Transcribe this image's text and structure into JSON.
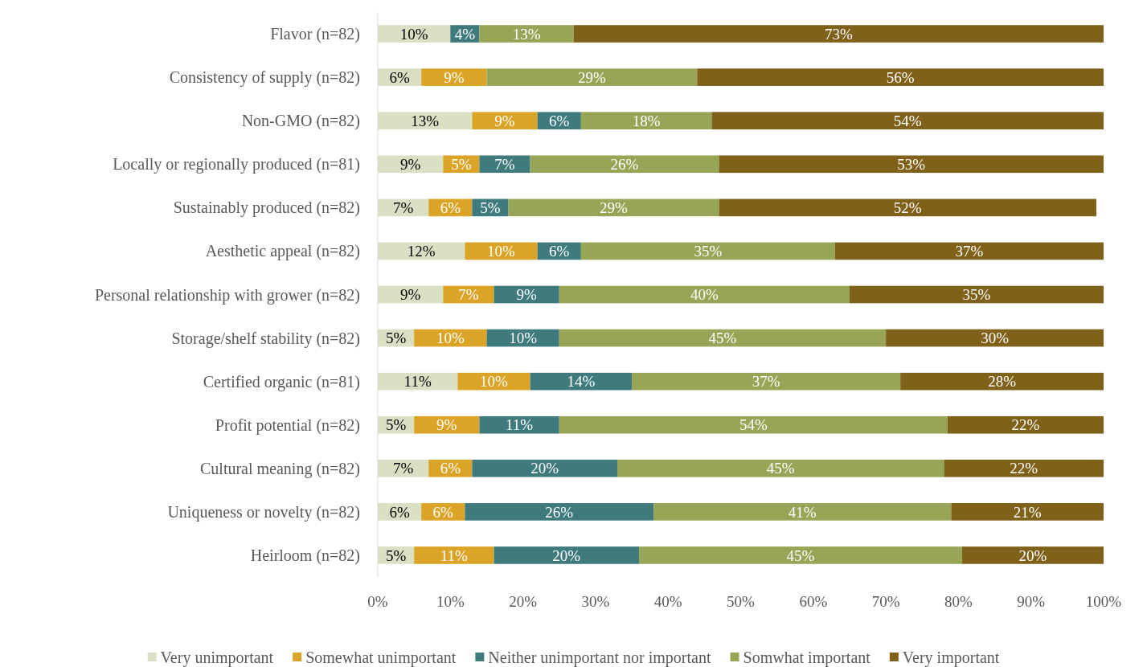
{
  "chart_data": {
    "type": "bar",
    "orientation": "horizontal",
    "stacked": true,
    "legend": "bottom",
    "grid": false,
    "categories": [
      "Flavor (n=82)",
      "Consistency of supply (n=82)",
      "Non-GMO (n=82)",
      "Locally or regionally produced (n=81)",
      "Sustainably produced (n=82)",
      "Aesthetic appeal (n=82)",
      "Personal relationship with grower (n=82)",
      "Storage/shelf stability (n=82)",
      "Certified organic (n=81)",
      "Profit potential (n=82)",
      "Cultural meaning (n=82)",
      "Uniqueness or novelty (n=82)",
      "Heirloom (n=82)"
    ],
    "xlim": [
      0,
      100
    ],
    "xticks": [
      {
        "value": 0,
        "label": "0%"
      },
      {
        "value": 10,
        "label": "10%"
      },
      {
        "value": 20,
        "label": "20%"
      },
      {
        "value": 30,
        "label": "30%"
      },
      {
        "value": 40,
        "label": "40%"
      },
      {
        "value": 50,
        "label": "50%"
      },
      {
        "value": 60,
        "label": "60%"
      },
      {
        "value": 70,
        "label": "70%"
      },
      {
        "value": 80,
        "label": "80%"
      },
      {
        "value": 90,
        "label": "90%"
      },
      {
        "value": 100,
        "label": "100%"
      }
    ],
    "series": [
      {
        "name": "Very unimportant",
        "color": "#d9e0c4",
        "values": [
          10,
          6,
          13,
          9,
          7,
          12,
          9,
          5,
          11,
          5,
          7,
          6,
          5
        ],
        "value_labels": [
          "10%",
          "6%",
          "13%",
          "9%",
          "7%",
          "12%",
          "9%",
          "5%",
          "11%",
          "5%",
          "7%",
          "6%",
          "5%"
        ]
      },
      {
        "name": "Somewhat unimportant",
        "color": "#dba426",
        "values": [
          null,
          9,
          9,
          5,
          6,
          10,
          7,
          10,
          10,
          9,
          6,
          6,
          11
        ],
        "value_labels": [
          null,
          "9%",
          "9%",
          "5%",
          "6%",
          "10%",
          "7%",
          "10%",
          "10%",
          "9%",
          "6%",
          "6%",
          "11%"
        ]
      },
      {
        "name": "Neither unimportant nor important",
        "color": "#3f7a7c",
        "values": [
          4,
          null,
          6,
          7,
          5,
          6,
          9,
          10,
          14,
          11,
          20,
          26,
          20
        ],
        "value_labels": [
          "4%",
          null,
          "6%",
          "7%",
          "5%",
          "6%",
          "9%",
          "10%",
          "14%",
          "11%",
          "20%",
          "26%",
          "20%"
        ]
      },
      {
        "name": "Somwhat important",
        "color": "#97a656",
        "values": [
          13,
          29,
          18,
          26,
          29,
          35,
          40,
          45,
          37,
          53.5,
          45,
          41,
          44.5
        ],
        "value_labels": [
          "13%",
          "29%",
          "18%",
          "26%",
          "29%",
          "35%",
          "40%",
          "45%",
          "37%",
          "54%",
          "45%",
          "41%",
          "45%"
        ]
      },
      {
        "name": "Very important",
        "color": "#7f6119",
        "values": [
          73,
          56,
          54,
          53,
          52,
          37,
          35,
          30,
          28,
          21.5,
          22,
          21,
          19.5
        ],
        "value_labels": [
          "73%",
          "56%",
          "54%",
          "53%",
          "52%",
          "37%",
          "35%",
          "30%",
          "28%",
          "22%",
          "22%",
          "21%",
          "20%"
        ]
      }
    ]
  }
}
